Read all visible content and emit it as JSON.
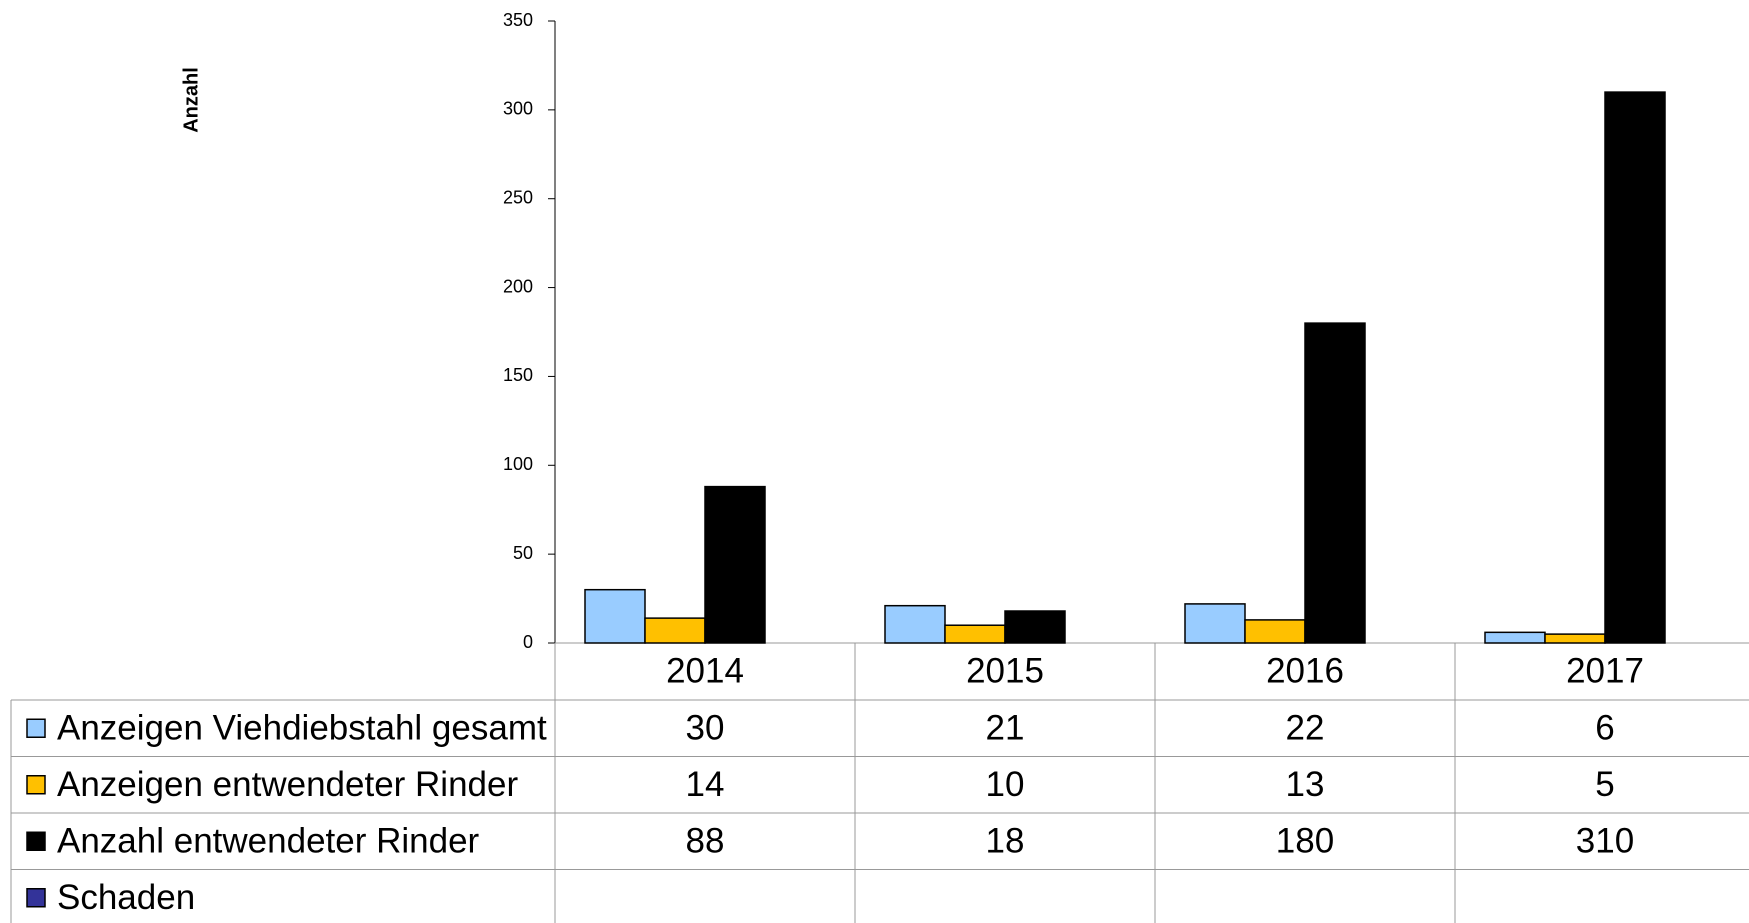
{
  "chart_data": {
    "type": "bar",
    "ylabel": "Anzahl",
    "categories": [
      "2014",
      "2015",
      "2016",
      "2017"
    ],
    "series": [
      {
        "name": "Anzeigen Viehdiebstahl gesamt",
        "color": "#99ccff",
        "values": [
          30,
          21,
          22,
          6
        ]
      },
      {
        "name": "Anzeigen entwendeter Rinder",
        "color": "#ffc000",
        "values": [
          14,
          10,
          13,
          5
        ]
      },
      {
        "name": "Anzahl entwendeter Rinder",
        "color": "#000000",
        "values": [
          88,
          18,
          180,
          310
        ]
      },
      {
        "name": "Schaden",
        "color": "#333399",
        "values": [
          null,
          null,
          null,
          null
        ]
      }
    ],
    "ylim": [
      0,
      350
    ],
    "yticks": [
      0,
      50,
      100,
      150,
      200,
      250,
      300,
      350
    ],
    "grid": false
  }
}
